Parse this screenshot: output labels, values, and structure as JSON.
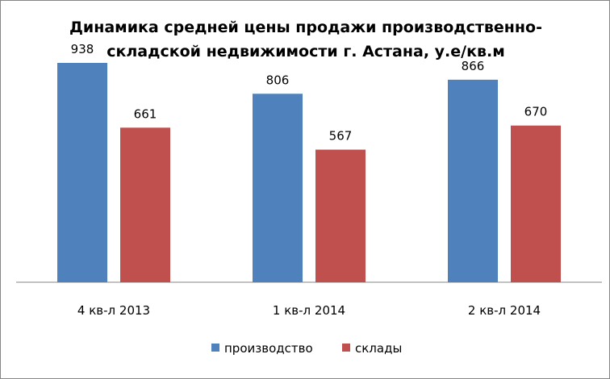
{
  "chart_data": {
    "type": "bar",
    "title_line1": "Динамика средней цены продажи производственно-",
    "title_line2": "складской недвижимости г. Астана, у.е/кв.м",
    "categories": [
      "4 кв-л 2013",
      "1 кв-л 2014",
      "2 кв-л 2014"
    ],
    "series": [
      {
        "name": "производство",
        "values": [
          938,
          806,
          866
        ],
        "color": "#4F81BD"
      },
      {
        "name": "склады",
        "values": [
          661,
          567,
          670
        ],
        "color": "#C0504D"
      }
    ],
    "ylim": [
      0,
      1000
    ],
    "grid": false,
    "legend_position": "bottom",
    "data_labels": true
  }
}
